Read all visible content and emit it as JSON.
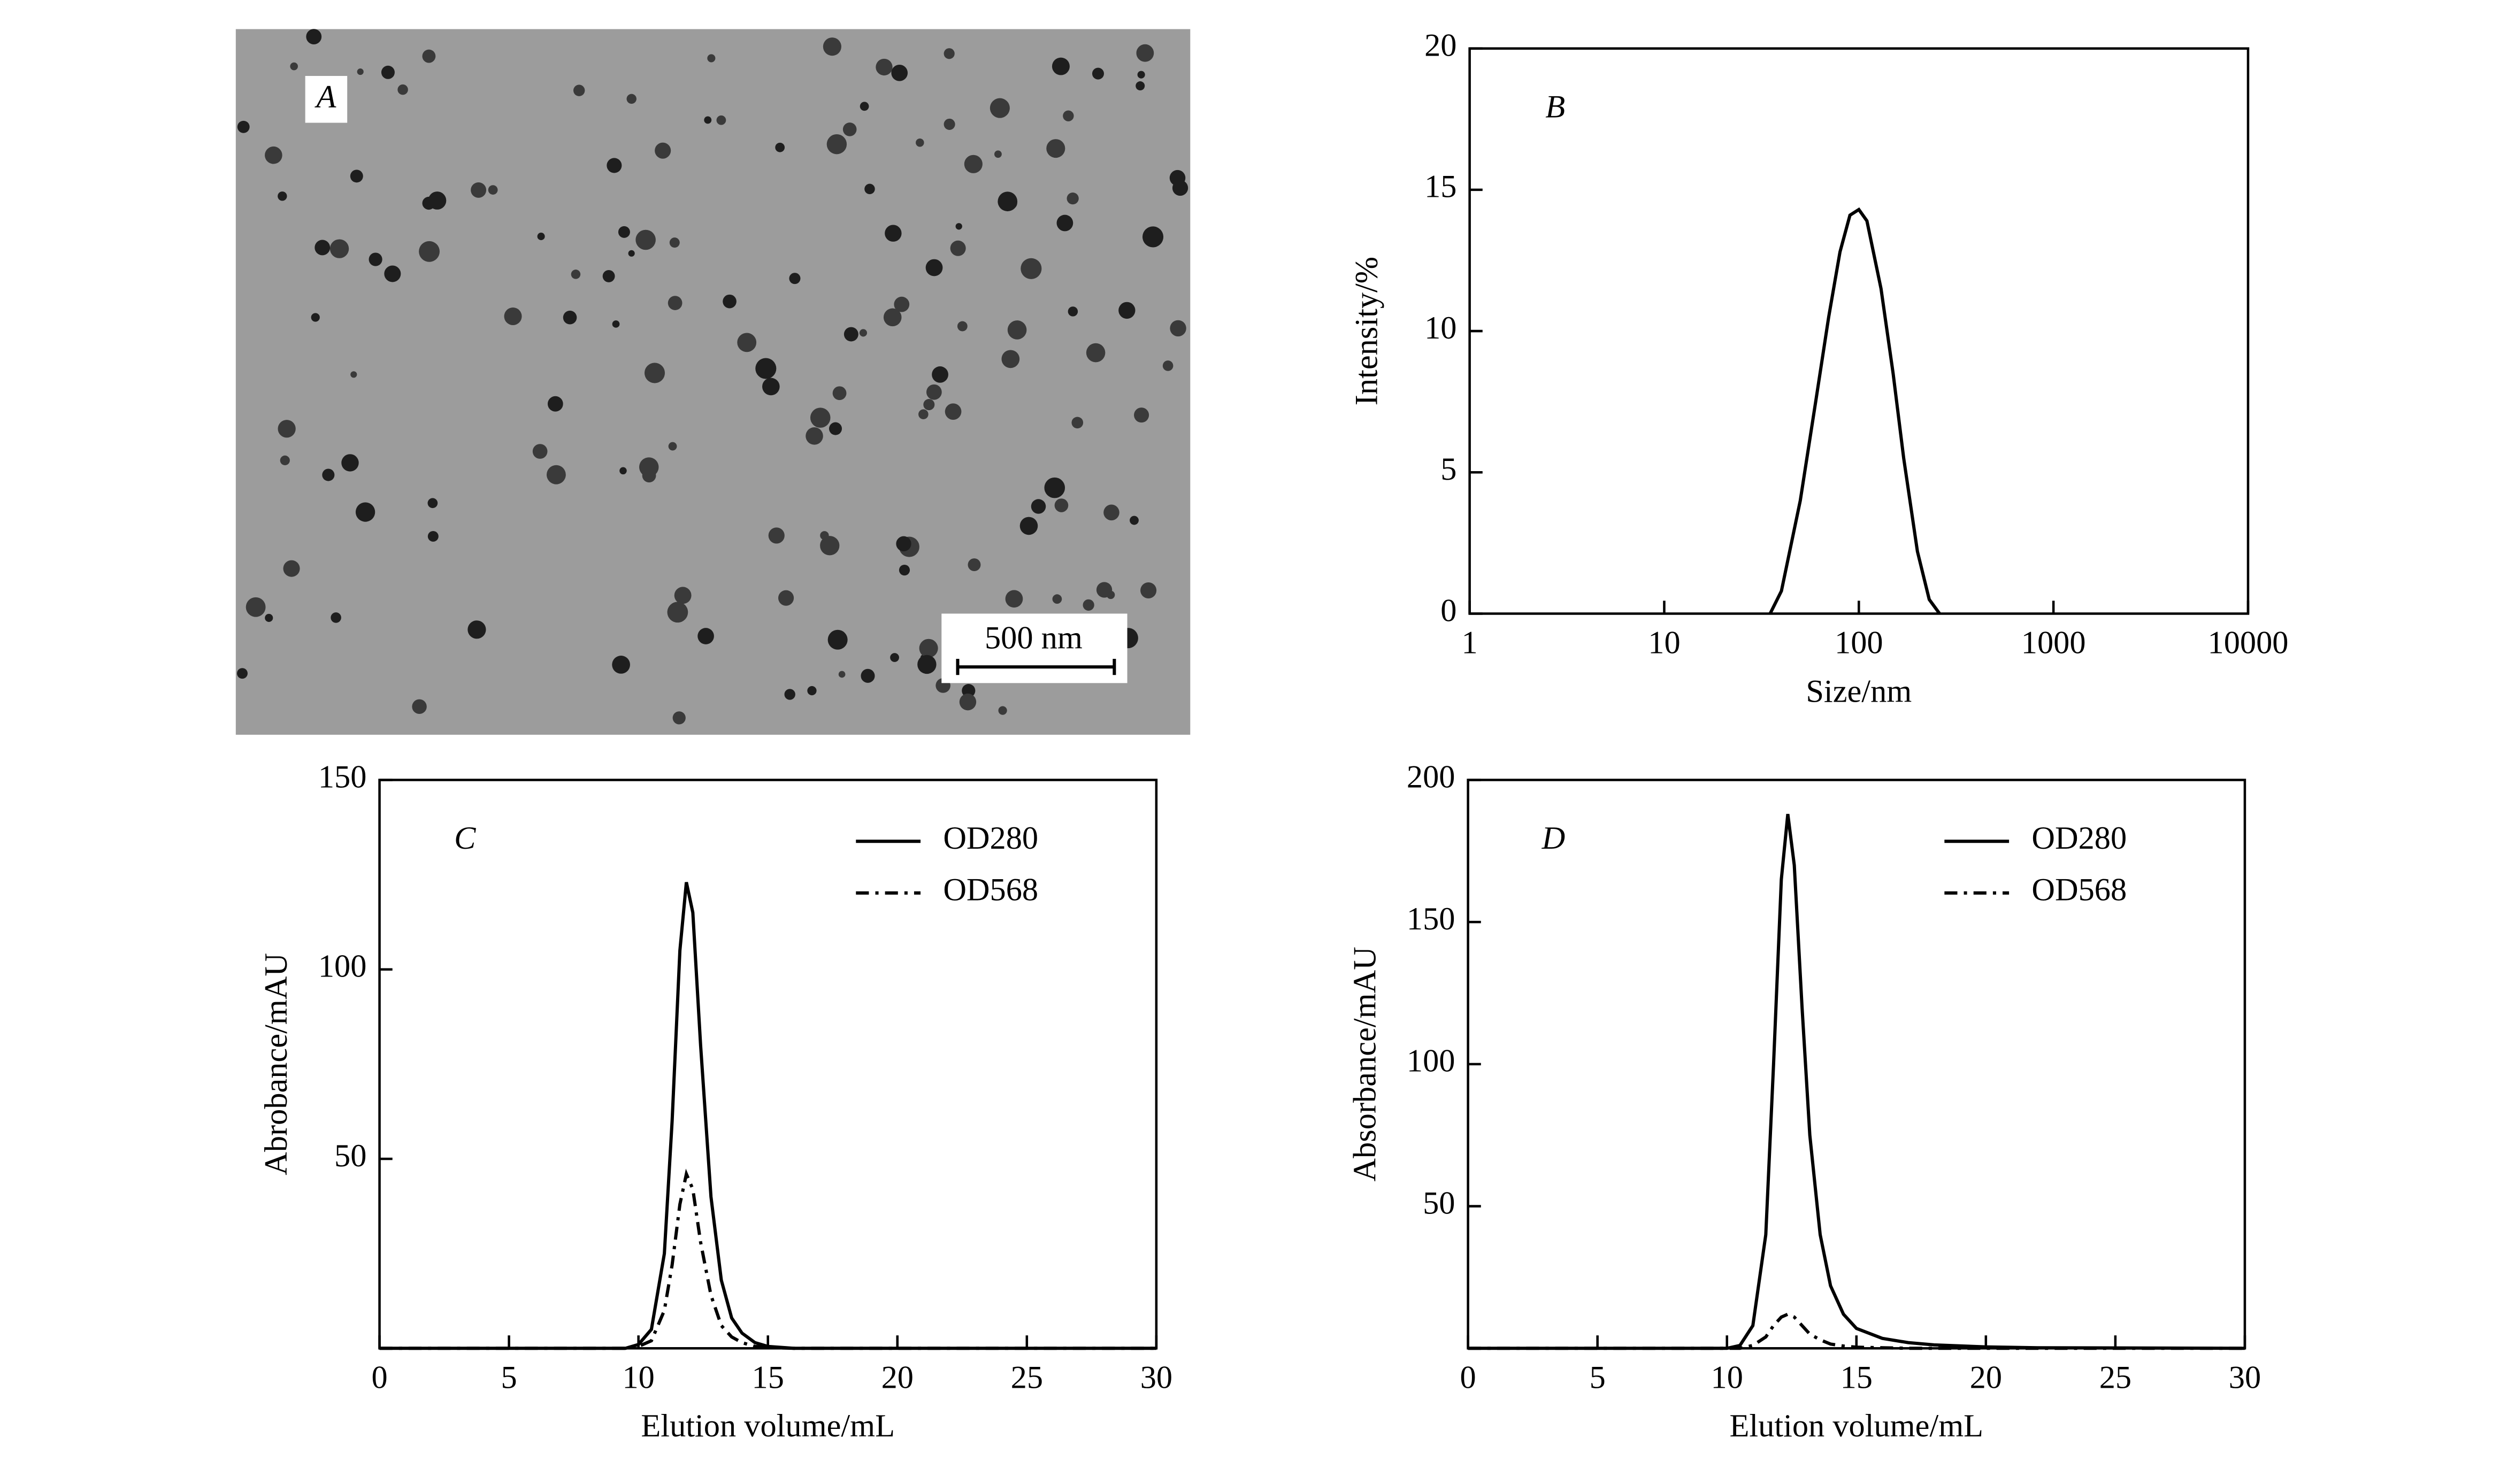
{
  "panel_a": {
    "label": "A",
    "scale_bar": "500 nm"
  },
  "chart_data": [
    {
      "type": "line",
      "annotation": "B",
      "x_label": "Size/nm",
      "y_label": "Intensity/%",
      "log_x": true,
      "xlim": [
        1,
        10000
      ],
      "xticks": [
        1,
        10,
        100,
        1000,
        10000
      ],
      "ylim": [
        0,
        20
      ],
      "yticks": [
        0,
        5,
        10,
        15,
        20
      ],
      "x": [
        35,
        40,
        50,
        60,
        70,
        80,
        90,
        100,
        110,
        130,
        150,
        170,
        200,
        230,
        260
      ],
      "values": [
        0,
        0.8,
        4,
        7.5,
        10.5,
        12.8,
        14.1,
        14.3,
        13.9,
        11.5,
        8.5,
        5.5,
        2.2,
        0.5,
        0
      ],
      "color": "#000000",
      "linestyle": "solid"
    },
    {
      "type": "line",
      "annotation": "C",
      "x_label": "Elution volume/mL",
      "y_label": "Abrobance/mAU",
      "xlim": [
        0,
        30
      ],
      "xticks": [
        0,
        5,
        10,
        15,
        20,
        25,
        30
      ],
      "ylim": [
        0,
        150
      ],
      "yticks": [
        50,
        100,
        150
      ],
      "legend": "upper right",
      "x": [
        0,
        9.5,
        10,
        10.5,
        11,
        11.3,
        11.6,
        11.85,
        12.1,
        12.4,
        12.8,
        13.2,
        13.6,
        14,
        14.5,
        15,
        16,
        30
      ],
      "series": [
        {
          "name": "OD280",
          "color": "#000000",
          "linestyle": "solid",
          "values": [
            0,
            0,
            1,
            5,
            25,
            60,
            105,
            123,
            115,
            80,
            40,
            18,
            8,
            4,
            1.5,
            0.5,
            0,
            0
          ]
        },
        {
          "name": "OD568",
          "color": "#000000",
          "linestyle": "dashdot",
          "values": [
            0,
            0,
            0.5,
            2,
            10,
            22,
            38,
            46,
            42,
            28,
            14,
            6,
            3,
            1.5,
            0.5,
            0.2,
            0,
            0
          ]
        }
      ]
    },
    {
      "type": "line",
      "annotation": "D",
      "x_label": "Elution volume/mL",
      "y_label": "Absorbance/mAU",
      "xlim": [
        0,
        30
      ],
      "xticks": [
        0,
        5,
        10,
        15,
        20,
        25,
        30
      ],
      "ylim": [
        0,
        200
      ],
      "yticks": [
        50,
        100,
        150,
        200
      ],
      "legend": "upper right",
      "x": [
        0,
        10,
        10.5,
        11,
        11.5,
        11.8,
        12.1,
        12.35,
        12.6,
        12.9,
        13.2,
        13.6,
        14,
        14.5,
        15,
        16,
        17,
        18,
        20,
        22,
        30
      ],
      "series": [
        {
          "name": "OD280",
          "color": "#000000",
          "linestyle": "solid",
          "values": [
            0,
            0,
            1,
            8,
            40,
            100,
            165,
            188,
            170,
            120,
            75,
            40,
            22,
            12,
            7,
            3.5,
            2,
            1.2,
            0.5,
            0.2,
            0
          ]
        },
        {
          "name": "OD568",
          "color": "#000000",
          "linestyle": "dashdot",
          "values": [
            0,
            0,
            0,
            1,
            4,
            8,
            11,
            12,
            11,
            8,
            5,
            3,
            1.5,
            0.8,
            0.4,
            0.2,
            0,
            0,
            0,
            0,
            0
          ]
        }
      ]
    }
  ]
}
